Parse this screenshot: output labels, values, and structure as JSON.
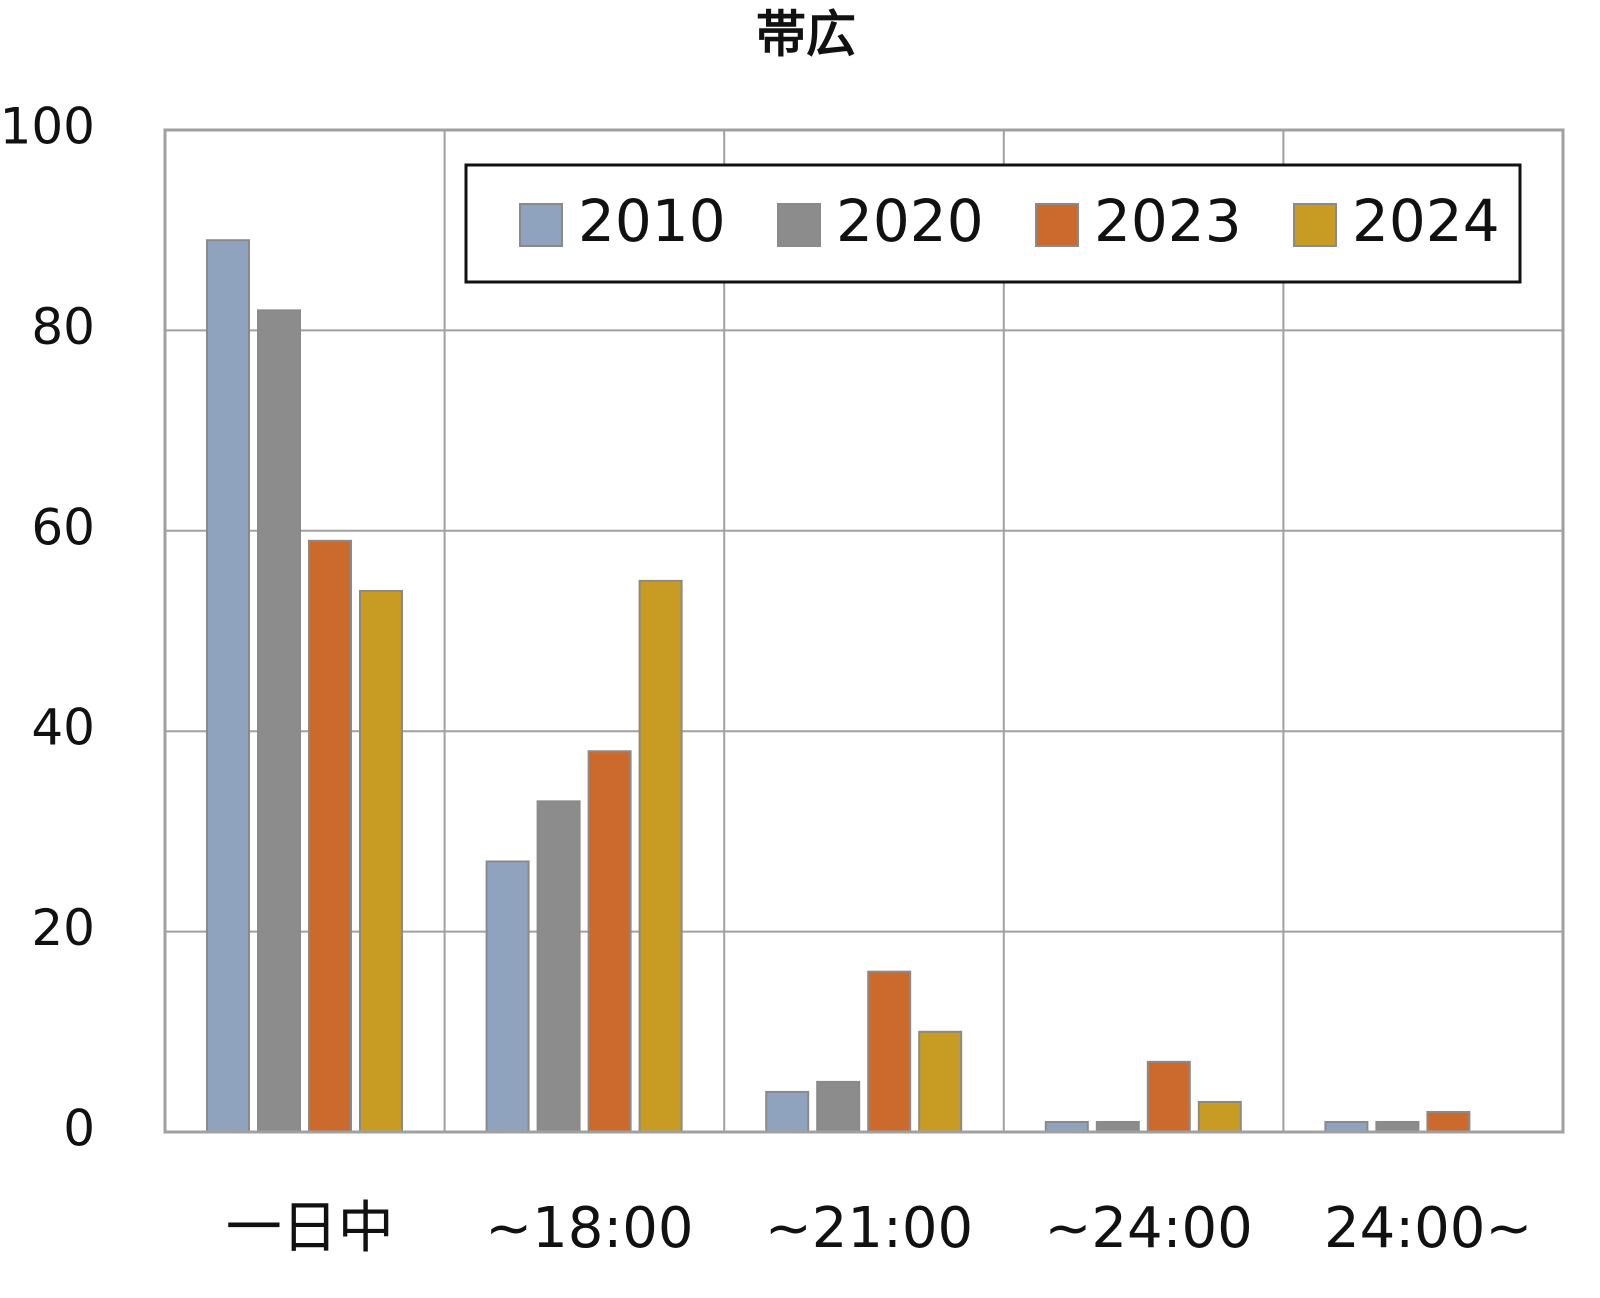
{
  "chart_data": {
    "type": "bar",
    "title": "帯広",
    "categories": [
      "一日中",
      "~18:00",
      "~21:00",
      "~24:00",
      "24:00~"
    ],
    "series": [
      {
        "name": "2010",
        "color": "#8fa3bf",
        "values": [
          89,
          27,
          4,
          1,
          1
        ]
      },
      {
        "name": "2020",
        "color": "#8c8c8c",
        "values": [
          82,
          33,
          5,
          1,
          1
        ]
      },
      {
        "name": "2023",
        "color": "#cc6a2e",
        "values": [
          59,
          38,
          16,
          7,
          2
        ]
      },
      {
        "name": "2024",
        "color": "#c89c22",
        "values": [
          54,
          55,
          10,
          3,
          0
        ]
      }
    ],
    "ylim": [
      0,
      100
    ],
    "yticks": [
      0,
      20,
      40,
      60,
      80,
      100
    ],
    "grid": true,
    "legend": "top-right"
  }
}
